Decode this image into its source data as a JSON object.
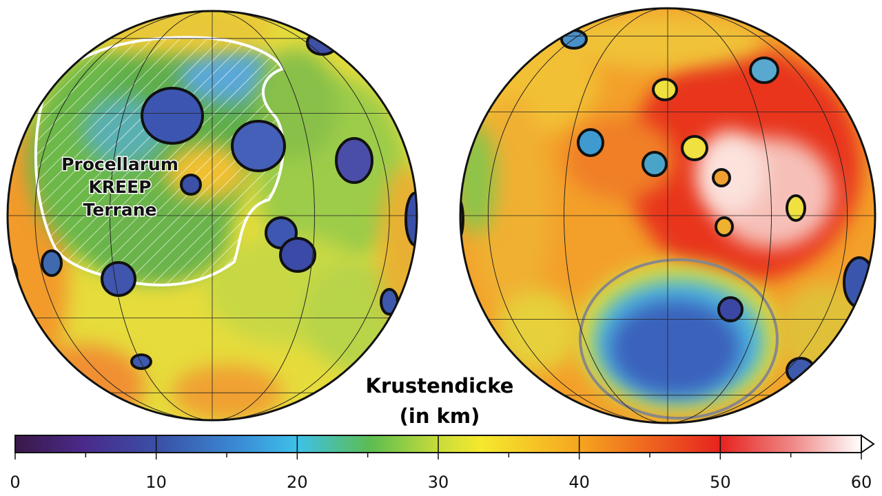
{
  "map": {
    "region_label_lines": [
      "Procellarum",
      "KREEP",
      "Terrane"
    ],
    "legend_title_lines": [
      "Krustendicke",
      "(in km)"
    ],
    "colorbar": {
      "lim": [
        0,
        60
      ],
      "ticks": [
        0,
        10,
        20,
        30,
        40,
        50,
        60
      ],
      "minor_ticks": [
        5,
        15,
        25,
        35,
        45,
        55
      ]
    }
  }
}
